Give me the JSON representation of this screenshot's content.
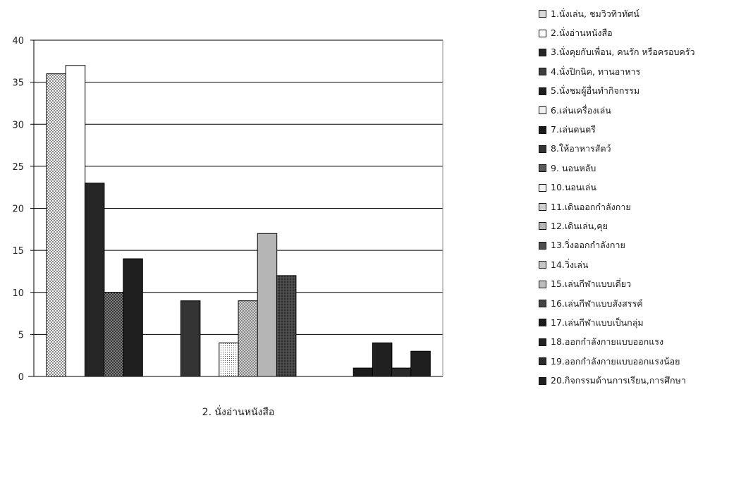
{
  "chart_data": {
    "type": "bar",
    "xlabel": "2. นั่งอ่านหนังสือ",
    "ylim": [
      0,
      40
    ],
    "yticks": [
      "0",
      "5",
      "10",
      "15",
      "20",
      "25",
      "30",
      "35",
      "40"
    ],
    "grid": true,
    "legend_position": "right",
    "series": [
      {
        "name": "1.นั่งเล่น, ชมวิวทิวทัศน์",
        "value": 36,
        "color": "#d9d9d9"
      },
      {
        "name": "2.นั่งอ่านหนังสือ",
        "value": 37,
        "color": "#ffffff"
      },
      {
        "name": "3.นั่งคุยกับเพื่อน, คนรัก หรือครอบครัว",
        "value": 23,
        "color": "#262626"
      },
      {
        "name": "4.นั่งปิกนิค, ทานอาหาร",
        "value": 10,
        "color": "#3d3d3d"
      },
      {
        "name": "5.นั่งชมผู้อื่นทำกิจกรรม",
        "value": 14,
        "color": "#1f1f1f"
      },
      {
        "name": "6.เล่นเครื่องเล่น",
        "value": 0,
        "color": "#f0f0f0"
      },
      {
        "name": "7.เล่นดนตรี",
        "value": 0,
        "color": "#1a1a1a"
      },
      {
        "name": "8.ให้อาหารสัตว์",
        "value": 9,
        "color": "#333333"
      },
      {
        "name": "9. นอนหลับ",
        "value": 0,
        "color": "#5a5a5a"
      },
      {
        "name": "10.นอนเล่น",
        "value": 4,
        "color": "#f2f2f2"
      },
      {
        "name": "11.เดินออกกำลังกาย",
        "value": 9,
        "color": "#cfcfcf"
      },
      {
        "name": "12.เดินเล่น,คุย",
        "value": 17,
        "color": "#b5b5b5"
      },
      {
        "name": "13.วิ่งออกกำลังกาย",
        "value": 12,
        "color": "#4d4d4d"
      },
      {
        "name": "14.วิ่งเล่น",
        "value": 0,
        "color": "#c6c6c6"
      },
      {
        "name": "15.เล่นกีฬาแบบเดี่ยว",
        "value": 0,
        "color": "#bdbdbd"
      },
      {
        "name": "16.เล่นกีฬาแบบสังสรรค์",
        "value": 0,
        "color": "#454545"
      },
      {
        "name": "17.เล่นกีฬาแบบเป็นกลุ่ม",
        "value": 1,
        "color": "#1c1c1c"
      },
      {
        "name": "18.ออกกำลังกายแบบออกแรง",
        "value": 4,
        "color": "#202020"
      },
      {
        "name": "19.ออกกำลังกายแบบออกแรงน้อย",
        "value": 1,
        "color": "#2a2a2a"
      },
      {
        "name": "20.กิจกรรมด้านการเรียน,การศึกษา",
        "value": 3,
        "color": "#1f1f1f"
      }
    ]
  }
}
